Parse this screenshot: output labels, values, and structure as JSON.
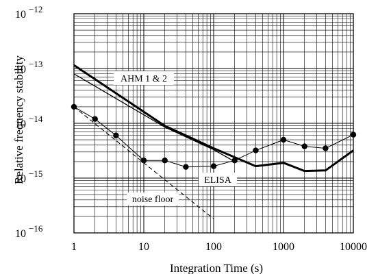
{
  "chart_data": {
    "type": "line",
    "title": "",
    "xlabel": "Integration Time (s)",
    "ylabel": "Relative frequency stability",
    "x_scale": "log",
    "y_scale": "log",
    "xlim": [
      1,
      10000
    ],
    "ylim": [
      1e-16,
      1e-12
    ],
    "grid": true,
    "x_tick_labels": [
      "1",
      "10",
      "100",
      "1000",
      "10000"
    ],
    "y_tick_labels": [
      {
        "base": "10",
        "exp": "−16"
      },
      {
        "base": "10",
        "exp": "−15"
      },
      {
        "base": "10",
        "exp": "−14"
      },
      {
        "base": "10",
        "exp": "−13"
      },
      {
        "base": "10",
        "exp": "−12"
      }
    ],
    "series": [
      {
        "style": "thick-line",
        "x": [
          1,
          20,
          100,
          400,
          1000,
          2000,
          4000,
          10000
        ],
        "y": [
          1.15e-13,
          9e-15,
          3.5e-15,
          1.65e-15,
          1.9e-15,
          1.35e-15,
          1.38e-15,
          3.2e-15
        ]
      },
      {
        "style": "thin-line",
        "x": [
          1,
          20,
          100,
          200
        ],
        "y": [
          8e-14,
          8.5e-15,
          3.3e-15,
          2e-15
        ]
      },
      {
        "style": "line-with-circles",
        "x": [
          1,
          2,
          4,
          10,
          20,
          40,
          100,
          200,
          400,
          1000,
          2000,
          4000,
          10000
        ],
        "y": [
          2e-14,
          1.2e-14,
          6e-15,
          2.1e-15,
          2.1e-15,
          1.6e-15,
          1.65e-15,
          2.1e-15,
          3.2e-15,
          5e-15,
          3.8e-15,
          3.5e-15,
          6.2e-15
        ]
      },
      {
        "style": "dashed-line",
        "x": [
          1,
          100
        ],
        "y": [
          2e-14,
          1.8e-16
        ]
      }
    ],
    "annotations": [
      {
        "text": "AHM 1 & 2"
      },
      {
        "text": "ELISA"
      },
      {
        "text": "noise floor"
      }
    ]
  }
}
